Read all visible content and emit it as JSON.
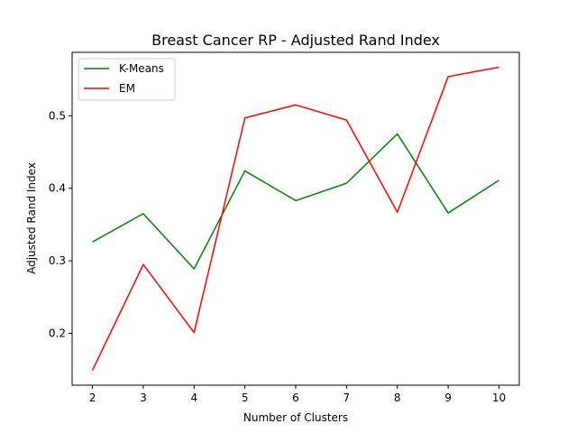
{
  "chart_data": {
    "type": "line",
    "title": "Breast Cancer RP - Adjusted Rand Index",
    "xlabel": "Number of Clusters",
    "ylabel": "Adjusted Rand Index",
    "x": [
      2,
      3,
      4,
      5,
      6,
      7,
      8,
      9,
      10
    ],
    "xlim": [
      1.6,
      10.4
    ],
    "ylim": [
      0.1285,
      0.5875
    ],
    "xticks": [
      "2",
      "3",
      "4",
      "5",
      "6",
      "7",
      "8",
      "9",
      "10"
    ],
    "yticks": [
      "0.2",
      "0.3",
      "0.4",
      "0.5"
    ],
    "ytick_values": [
      0.2,
      0.3,
      0.4,
      0.5
    ],
    "grid": false,
    "legend_position": "top-left",
    "series": [
      {
        "name": "K-Means",
        "color": "#008000",
        "values": [
          0.326,
          0.365,
          0.289,
          0.424,
          0.383,
          0.407,
          0.475,
          0.366,
          0.411
        ]
      },
      {
        "name": "EM",
        "color": "#ff0000",
        "values": [
          0.149,
          0.295,
          0.201,
          0.497,
          0.515,
          0.494,
          0.367,
          0.554,
          0.567
        ]
      }
    ]
  }
}
